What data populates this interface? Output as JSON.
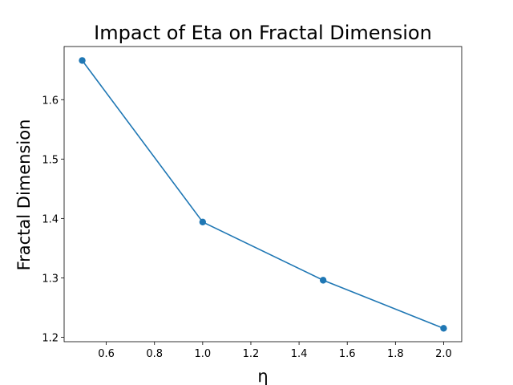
{
  "chart_data": {
    "type": "line",
    "title": "Impact of Eta on Fractal Dimension",
    "xlabel": "η",
    "ylabel": "Fractal Dimension",
    "xlim": [
      0.425,
      2.075
    ],
    "ylim": [
      1.1925,
      1.6895
    ],
    "x_ticks": [
      0.6,
      0.8,
      1.0,
      1.2,
      1.4,
      1.6,
      1.8,
      2.0
    ],
    "x_tick_labels": [
      "0.6",
      "0.8",
      "1.0",
      "1.2",
      "1.4",
      "1.6",
      "1.8",
      "2.0"
    ],
    "y_ticks": [
      1.2,
      1.3,
      1.4,
      1.5,
      1.6
    ],
    "y_tick_labels": [
      "1.2",
      "1.3",
      "1.4",
      "1.5",
      "1.6"
    ],
    "grid": false,
    "series": [
      {
        "x": [
          0.5,
          1.0,
          1.5,
          2.0
        ],
        "y": [
          1.666,
          1.394,
          1.296,
          1.215
        ],
        "color": "#1f77b4",
        "marker": "circle"
      }
    ]
  }
}
